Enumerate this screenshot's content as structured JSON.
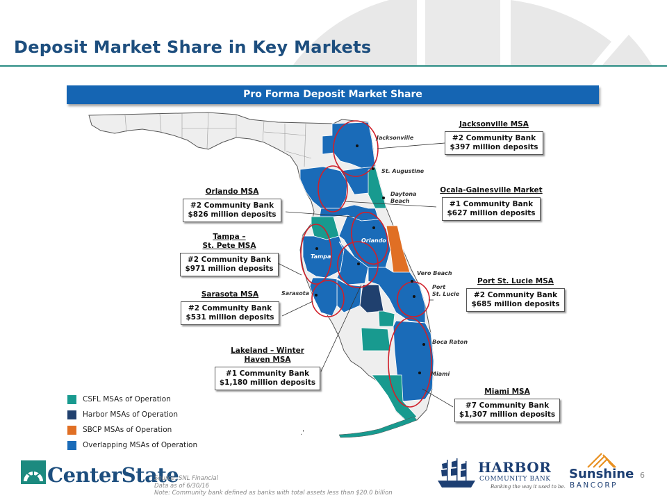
{
  "header": {
    "title": "Deposit Market Share in Key Markets"
  },
  "banner": {
    "label": "Pro Forma Deposit Market Share"
  },
  "colors": {
    "csfl": "#189a8f",
    "harbor": "#20406e",
    "sbcp": "#e06f24",
    "overlap": "#1a6bb8",
    "other": "#eeeeee",
    "circle": "#d0202a"
  },
  "cities": {
    "jacksonville": "Jacksonville",
    "st_augustine": "St. Augustine",
    "daytona_1": "Daytona",
    "daytona_2": "Beach",
    "orlando": "Orlando",
    "tampa": "Tampa",
    "vero_beach": "Vero Beach",
    "port_st_lucie_1": "Port",
    "port_st_lucie_2": "St. Lucie",
    "sarasota": "Sarasota",
    "boca_raton": "Boca Raton",
    "miami": "Miami"
  },
  "callouts": {
    "jacksonville": {
      "title": "Jacksonville MSA",
      "line1": "#2 Community Bank",
      "line2": "$397 million deposits"
    },
    "ocala": {
      "title": "Ocala-Gainesville Market",
      "line1": "#1 Community Bank",
      "line2": "$627 million deposits"
    },
    "orlando": {
      "title": "Orlando MSA",
      "line1": "#2 Community Bank",
      "line2": "$826 million deposits"
    },
    "tampa": {
      "title_1": "Tampa –",
      "title_2": "St. Pete MSA",
      "line1": "#2 Community Bank",
      "line2": "$971 million deposits"
    },
    "sarasota": {
      "title": "Sarasota MSA",
      "line1": "#2 Community Bank",
      "line2": "$531 million deposits"
    },
    "port_st_lucie": {
      "title": "Port St. Lucie MSA",
      "line1": "#2 Community Bank",
      "line2": "$685 million deposits"
    },
    "lakeland": {
      "title_1": "Lakeland – Winter",
      "title_2": "Haven MSA",
      "line1": "#1 Community Bank",
      "line2": "$1,180 million deposits"
    },
    "miami": {
      "title": "Miami MSA",
      "line1": "#7 Community Bank",
      "line2": "$1,307 million deposits"
    }
  },
  "legend": {
    "items": [
      {
        "label": "CSFL MSAs of Operation",
        "color": "#189a8f"
      },
      {
        "label": "Harbor MSAs of Operation",
        "color": "#20406e"
      },
      {
        "label": "SBCP MSAs of Operation",
        "color": "#e06f24"
      },
      {
        "label": "Overlapping MSAs of Operation",
        "color": "#1a6bb8"
      }
    ]
  },
  "footer": {
    "source": "Source: SNL Financial",
    "data_as_of": "Data as of 6/30/16",
    "note": "Note: Community bank defined as banks with total assets less than $20.0 billion",
    "page_number": "6"
  },
  "logos": {
    "centerstate": "CenterState",
    "harbor_name": "HARBOR",
    "harbor_sub": "COMMUNITY BANK",
    "harbor_tagline": "Banking the way it used to be.",
    "sunshine_name": "Sunshine",
    "sunshine_sub": "BANCORP"
  }
}
